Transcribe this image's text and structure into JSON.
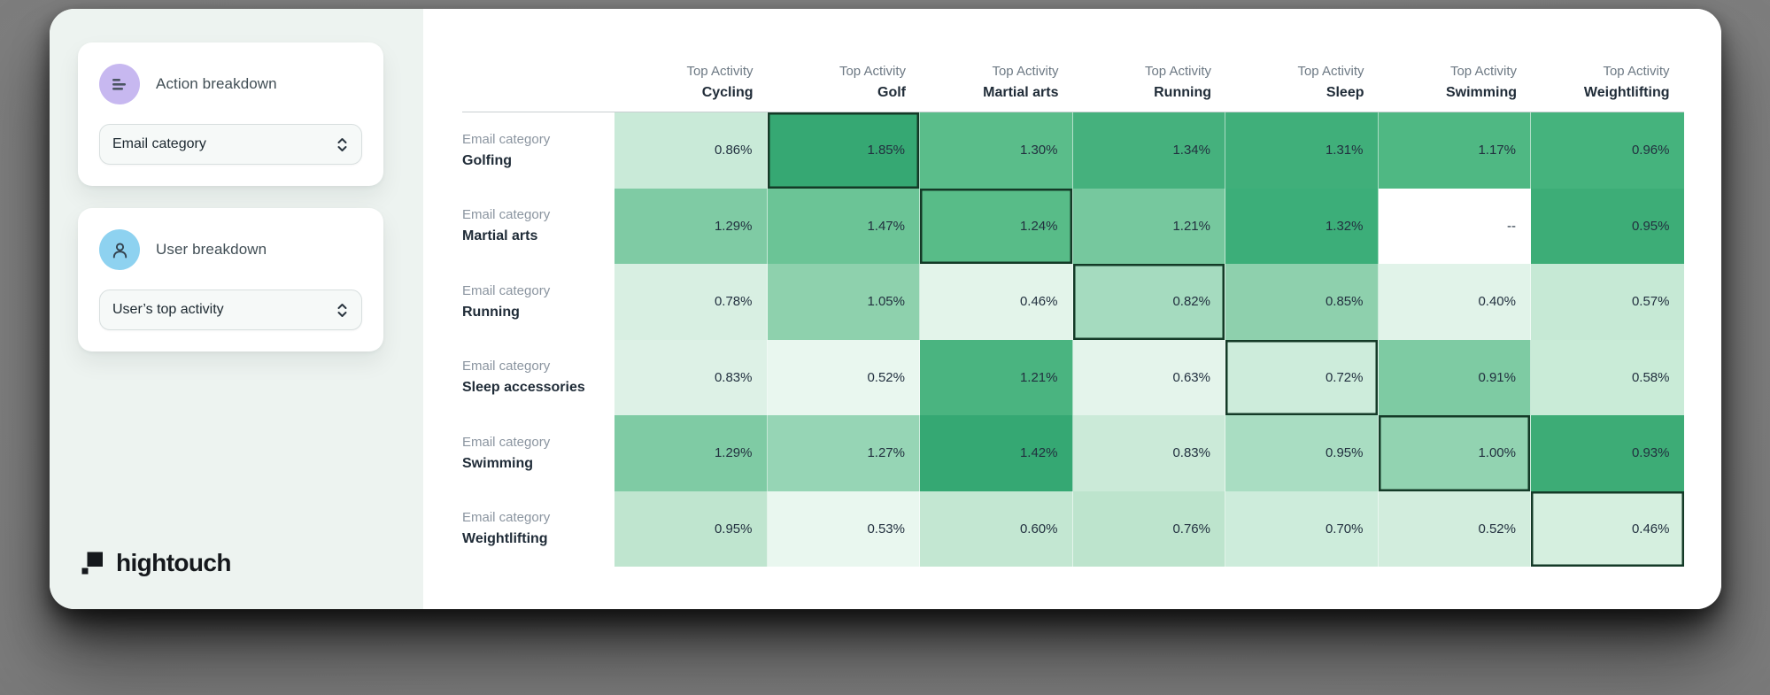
{
  "sidebar": {
    "action_panel": {
      "title": "Action breakdown",
      "select_value": "Email category"
    },
    "user_panel": {
      "title": "User breakdown",
      "select_value": "User’s top activity"
    },
    "logo_text": "hightouch"
  },
  "chart_data": {
    "type": "heatmap",
    "col_label_prefix": "Top Activity",
    "row_label_prefix": "Email category",
    "columns": [
      "Cycling",
      "Golf",
      "Martial arts",
      "Running",
      "Sleep",
      "Swimming",
      "Weightlifting"
    ],
    "rows": [
      "Golfing",
      "Martial arts",
      "Running",
      "Sleep accessories",
      "Swimming",
      "Weightlifting"
    ],
    "values_pct": [
      [
        0.86,
        1.85,
        1.3,
        1.34,
        1.31,
        1.17,
        0.96
      ],
      [
        1.29,
        1.47,
        1.24,
        1.21,
        1.32,
        null,
        0.95
      ],
      [
        0.78,
        1.05,
        0.46,
        0.82,
        0.85,
        0.4,
        0.57
      ],
      [
        0.83,
        0.52,
        1.21,
        0.63,
        0.72,
        0.91,
        0.58
      ],
      [
        1.29,
        1.27,
        1.42,
        0.83,
        0.95,
        1.0,
        0.93
      ],
      [
        0.95,
        0.53,
        0.6,
        0.76,
        0.7,
        0.52,
        0.46
      ]
    ],
    "missing_text": "--",
    "cell_colors": [
      [
        "#c9ead8",
        "#36a873",
        "#5abd8a",
        "#45b17d",
        "#40af7a",
        "#4fb883",
        "#45b37d"
      ],
      [
        "#7fcba4",
        "#6bc496",
        "#58bc88",
        "#76c89e",
        "#3cae79",
        null,
        "#3dad77"
      ],
      [
        "#d8efe2",
        "#8ed1ad",
        "#e3f4ea",
        "#a5dbbf",
        "#8ed0ad",
        "#e1f3e9",
        "#c6e9d5"
      ],
      [
        "#ddf1e6",
        "#e9f7ef",
        "#4ab480",
        "#e4f4eb",
        "#cdecdb",
        "#7ecba3",
        "#c9ebd7"
      ],
      [
        "#7fcba4",
        "#96d5b5",
        "#35a873",
        "#cbead8",
        "#a9ddc2",
        "#92d3b1",
        "#3dac76"
      ],
      [
        "#bfe5cf",
        "#e9f7ef",
        "#c3e7d2",
        "#bde4cd",
        "#cdecdb",
        "#d2eddd",
        "#d5efdf"
      ]
    ],
    "empty_cell_color": "#ffffff",
    "highlighted_cells": [
      [
        0,
        1
      ],
      [
        1,
        2
      ],
      [
        2,
        3
      ],
      [
        3,
        4
      ],
      [
        4,
        5
      ],
      [
        5,
        6
      ]
    ],
    "highlight_border_color": "#143a27",
    "colors": {
      "scale_light": "#e9f7ef",
      "scale_dark": "#35a873",
      "accent_purple": "#c7b8f0",
      "accent_blue": "#8ed2f0"
    }
  }
}
